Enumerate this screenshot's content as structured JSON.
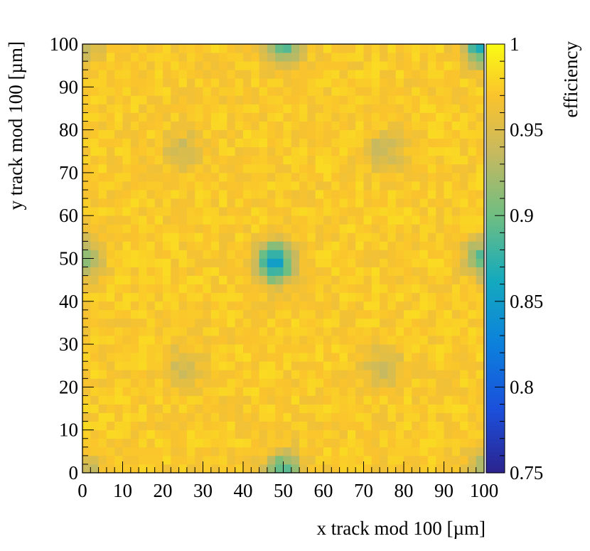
{
  "chart_data": {
    "type": "heatmap",
    "title": "",
    "xlabel": "x track mod 100 [µm]",
    "ylabel": "y track mod 100 [µm]",
    "zlabel": "efficiency",
    "xlim": [
      0,
      100
    ],
    "ylim": [
      0,
      100
    ],
    "zlim": [
      0.75,
      1.0
    ],
    "bin_width": 2,
    "nbins_x": 50,
    "nbins_y": 50,
    "x_ticks": [
      "0",
      "10",
      "20",
      "30",
      "40",
      "50",
      "60",
      "70",
      "80",
      "90",
      "100"
    ],
    "y_ticks": [
      "0",
      "10",
      "20",
      "30",
      "40",
      "50",
      "60",
      "70",
      "80",
      "90",
      "100"
    ],
    "z_ticks": [
      "0.75",
      "0.8",
      "0.85",
      "0.9",
      "0.95",
      "1"
    ],
    "colormap": "parula",
    "background_efficiency": 0.983,
    "efficiency_dips": [
      {
        "x": 0,
        "y": 0,
        "min": 0.935
      },
      {
        "x": 100,
        "y": 0,
        "min": 0.925
      },
      {
        "x": 0,
        "y": 100,
        "min": 0.935
      },
      {
        "x": 100,
        "y": 100,
        "min": 0.855
      },
      {
        "x": 50,
        "y": 0,
        "min": 0.89
      },
      {
        "x": 50,
        "y": 100,
        "min": 0.9
      },
      {
        "x": 0,
        "y": 50,
        "min": 0.915
      },
      {
        "x": 100,
        "y": 50,
        "min": 0.9
      },
      {
        "x": 48,
        "y": 49,
        "min": 0.86
      },
      {
        "x": 25,
        "y": 75,
        "min": 0.95
      },
      {
        "x": 75,
        "y": 75,
        "min": 0.945
      },
      {
        "x": 25,
        "y": 25,
        "min": 0.95
      },
      {
        "x": 75,
        "y": 25,
        "min": 0.948
      }
    ]
  }
}
